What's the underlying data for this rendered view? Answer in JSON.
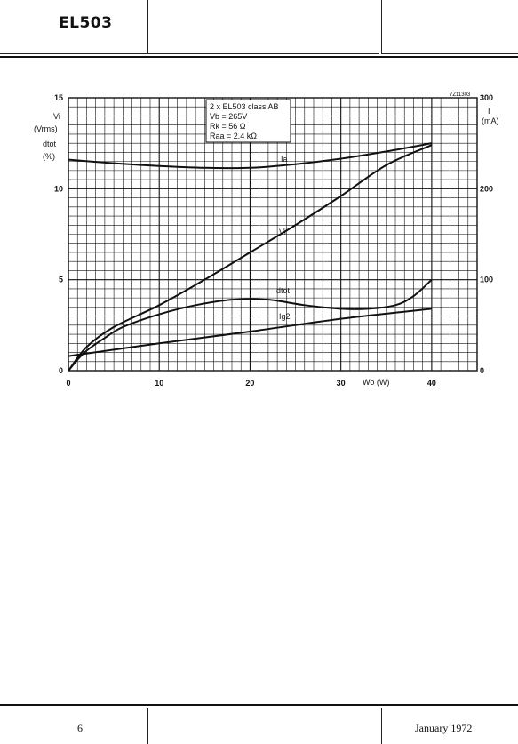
{
  "header": {
    "title": "EL503"
  },
  "footer": {
    "page_number": "6",
    "date": "January 1972"
  },
  "chart_data": {
    "type": "line",
    "figure_code": "7Z11303",
    "conditions": [
      "2 x EL503 class AB",
      "Vb = 265V",
      "Rk = 56 Ω",
      "Raa = 2.4 kΩ"
    ],
    "x_axis": {
      "label": "Wo (W)",
      "range": [
        0,
        45
      ],
      "ticks": [
        0,
        10,
        20,
        30,
        40
      ]
    },
    "y_left": {
      "label_lines": [
        "Vi",
        "(Vrms)",
        "dtot",
        "(%)"
      ],
      "range": [
        0,
        15
      ],
      "ticks": [
        0,
        5,
        10,
        15
      ]
    },
    "y_right": {
      "label_lines": [
        "I",
        "(mA)"
      ],
      "range": [
        0,
        300
      ],
      "ticks": [
        0,
        100,
        200,
        300
      ]
    },
    "grid": true,
    "series": [
      {
        "name": "Ia",
        "axis": "right",
        "x": [
          0,
          5,
          10,
          15,
          20,
          25,
          30,
          35,
          40
        ],
        "y": [
          232,
          228,
          225,
          223,
          223,
          227,
          233,
          241,
          250
        ]
      },
      {
        "name": "Vi",
        "axis": "left",
        "x": [
          0,
          2,
          5,
          10,
          15,
          20,
          25,
          30,
          35,
          40
        ],
        "y": [
          0,
          1.3,
          2.4,
          3.6,
          5.0,
          6.5,
          8.0,
          9.6,
          11.3,
          12.4
        ]
      },
      {
        "name": "dtot",
        "axis": "left",
        "x": [
          0,
          1,
          2,
          4,
          6,
          10,
          14,
          18,
          22,
          26,
          30,
          33,
          36,
          38,
          40
        ],
        "y": [
          0,
          0.6,
          1.1,
          1.8,
          2.4,
          3.1,
          3.6,
          3.9,
          3.9,
          3.6,
          3.4,
          3.4,
          3.6,
          4.1,
          5.0
        ]
      },
      {
        "name": "Ig2",
        "axis": "right",
        "x": [
          0,
          10,
          20,
          30,
          40
        ],
        "y": [
          16,
          30,
          43,
          57,
          68
        ]
      }
    ]
  }
}
